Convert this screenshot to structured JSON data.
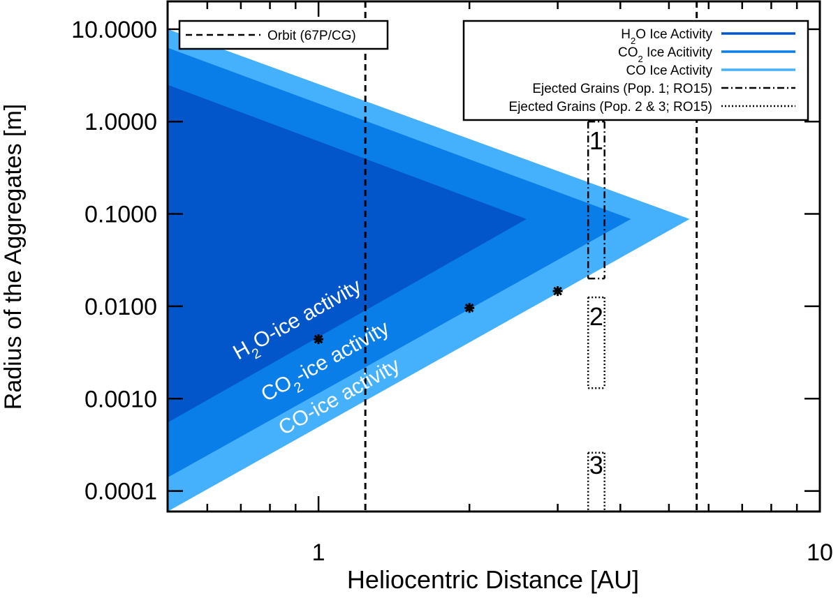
{
  "chart_data": {
    "type": "area",
    "xlabel": "Heliocentric Distance [AU]",
    "ylabel": "Radius of the Aggregates [m]",
    "xscale": "log",
    "yscale": "log",
    "xlim": [
      0.5,
      10
    ],
    "ylim": [
      6e-05,
      20
    ],
    "x_tick_labels": [
      "1",
      "10"
    ],
    "x_tick_values": [
      1,
      10
    ],
    "y_tick_labels": [
      "10.0000",
      "1.0000",
      "0.1000",
      "0.0100",
      "0.0010",
      "0.0001"
    ],
    "y_tick_values": [
      10,
      1,
      0.1,
      0.01,
      0.001,
      0.0001
    ],
    "colors": {
      "h2o": "#0356c9",
      "co2": "#0a7ee8",
      "co": "#45b1fc",
      "axis": "#000000"
    },
    "regions": [
      {
        "name": "CO Ice Activity",
        "color_key": "co",
        "polygon": [
          [
            0.5,
            10
          ],
          [
            0.5,
            6e-05
          ],
          [
            5.5,
            0.088
          ]
        ]
      },
      {
        "name": "CO2 Ice Acitivity",
        "color_key": "co2",
        "polygon": [
          [
            0.5,
            6.3
          ],
          [
            0.5,
            0.00014
          ],
          [
            4.2,
            0.088
          ]
        ]
      },
      {
        "name": "H2O Ice Activity",
        "color_key": "h2o",
        "polygon": [
          [
            0.5,
            2.5
          ],
          [
            0.5,
            0.00055
          ],
          [
            2.6,
            0.088
          ]
        ]
      }
    ],
    "points": {
      "name": "Data points",
      "x": [
        1.0,
        2.0,
        3.0
      ],
      "y": [
        0.0044,
        0.0096,
        0.0146
      ]
    },
    "orbit_lines": {
      "name": "Orbit (67P/CG)",
      "x": [
        1.24,
        5.68
      ]
    },
    "ejected_boxes": [
      {
        "label": "1",
        "style": "dashdot",
        "x": [
          3.45,
          3.72
        ],
        "y": [
          0.02,
          1.0
        ]
      },
      {
        "label": "2",
        "style": "dotted",
        "x": [
          3.45,
          3.72
        ],
        "y": [
          0.0013,
          0.0125
        ]
      },
      {
        "label": "3",
        "style": "dotted",
        "x": [
          3.45,
          3.72
        ],
        "y": [
          6e-05,
          0.00026
        ]
      }
    ],
    "annotations": {
      "h2o": {
        "main": "H",
        "sub": "2",
        "rest": "O-ice activity"
      },
      "co2": {
        "main": "CO",
        "sub": "2",
        "rest": "-ice activity"
      },
      "co": {
        "main": "CO-ice activity",
        "sub": "",
        "rest": ""
      }
    },
    "legend_left": {
      "placement": "top-left",
      "entries": [
        {
          "label": "Orbit (67P/CG)",
          "style": "dashed"
        }
      ]
    },
    "legend_right": {
      "placement": "top-right",
      "entries": [
        {
          "main": "H",
          "sub": "2",
          "rest": "O Ice Activity",
          "style": "solid",
          "color_key": "h2o"
        },
        {
          "main": "CO",
          "sub": "2",
          "rest": " Ice Acitivity",
          "style": "solid",
          "color_key": "co2"
        },
        {
          "main": "CO Ice Activity",
          "sub": "",
          "rest": "",
          "style": "solid",
          "color_key": "co"
        },
        {
          "main": "Ejected Grains (Pop. 1; RO15)",
          "sub": "",
          "rest": "",
          "style": "dashdot",
          "color_key": "axis"
        },
        {
          "main": "Ejected Grains (Pop. 2 & 3; RO15)",
          "sub": "",
          "rest": "",
          "style": "dotted",
          "color_key": "axis"
        }
      ]
    }
  }
}
